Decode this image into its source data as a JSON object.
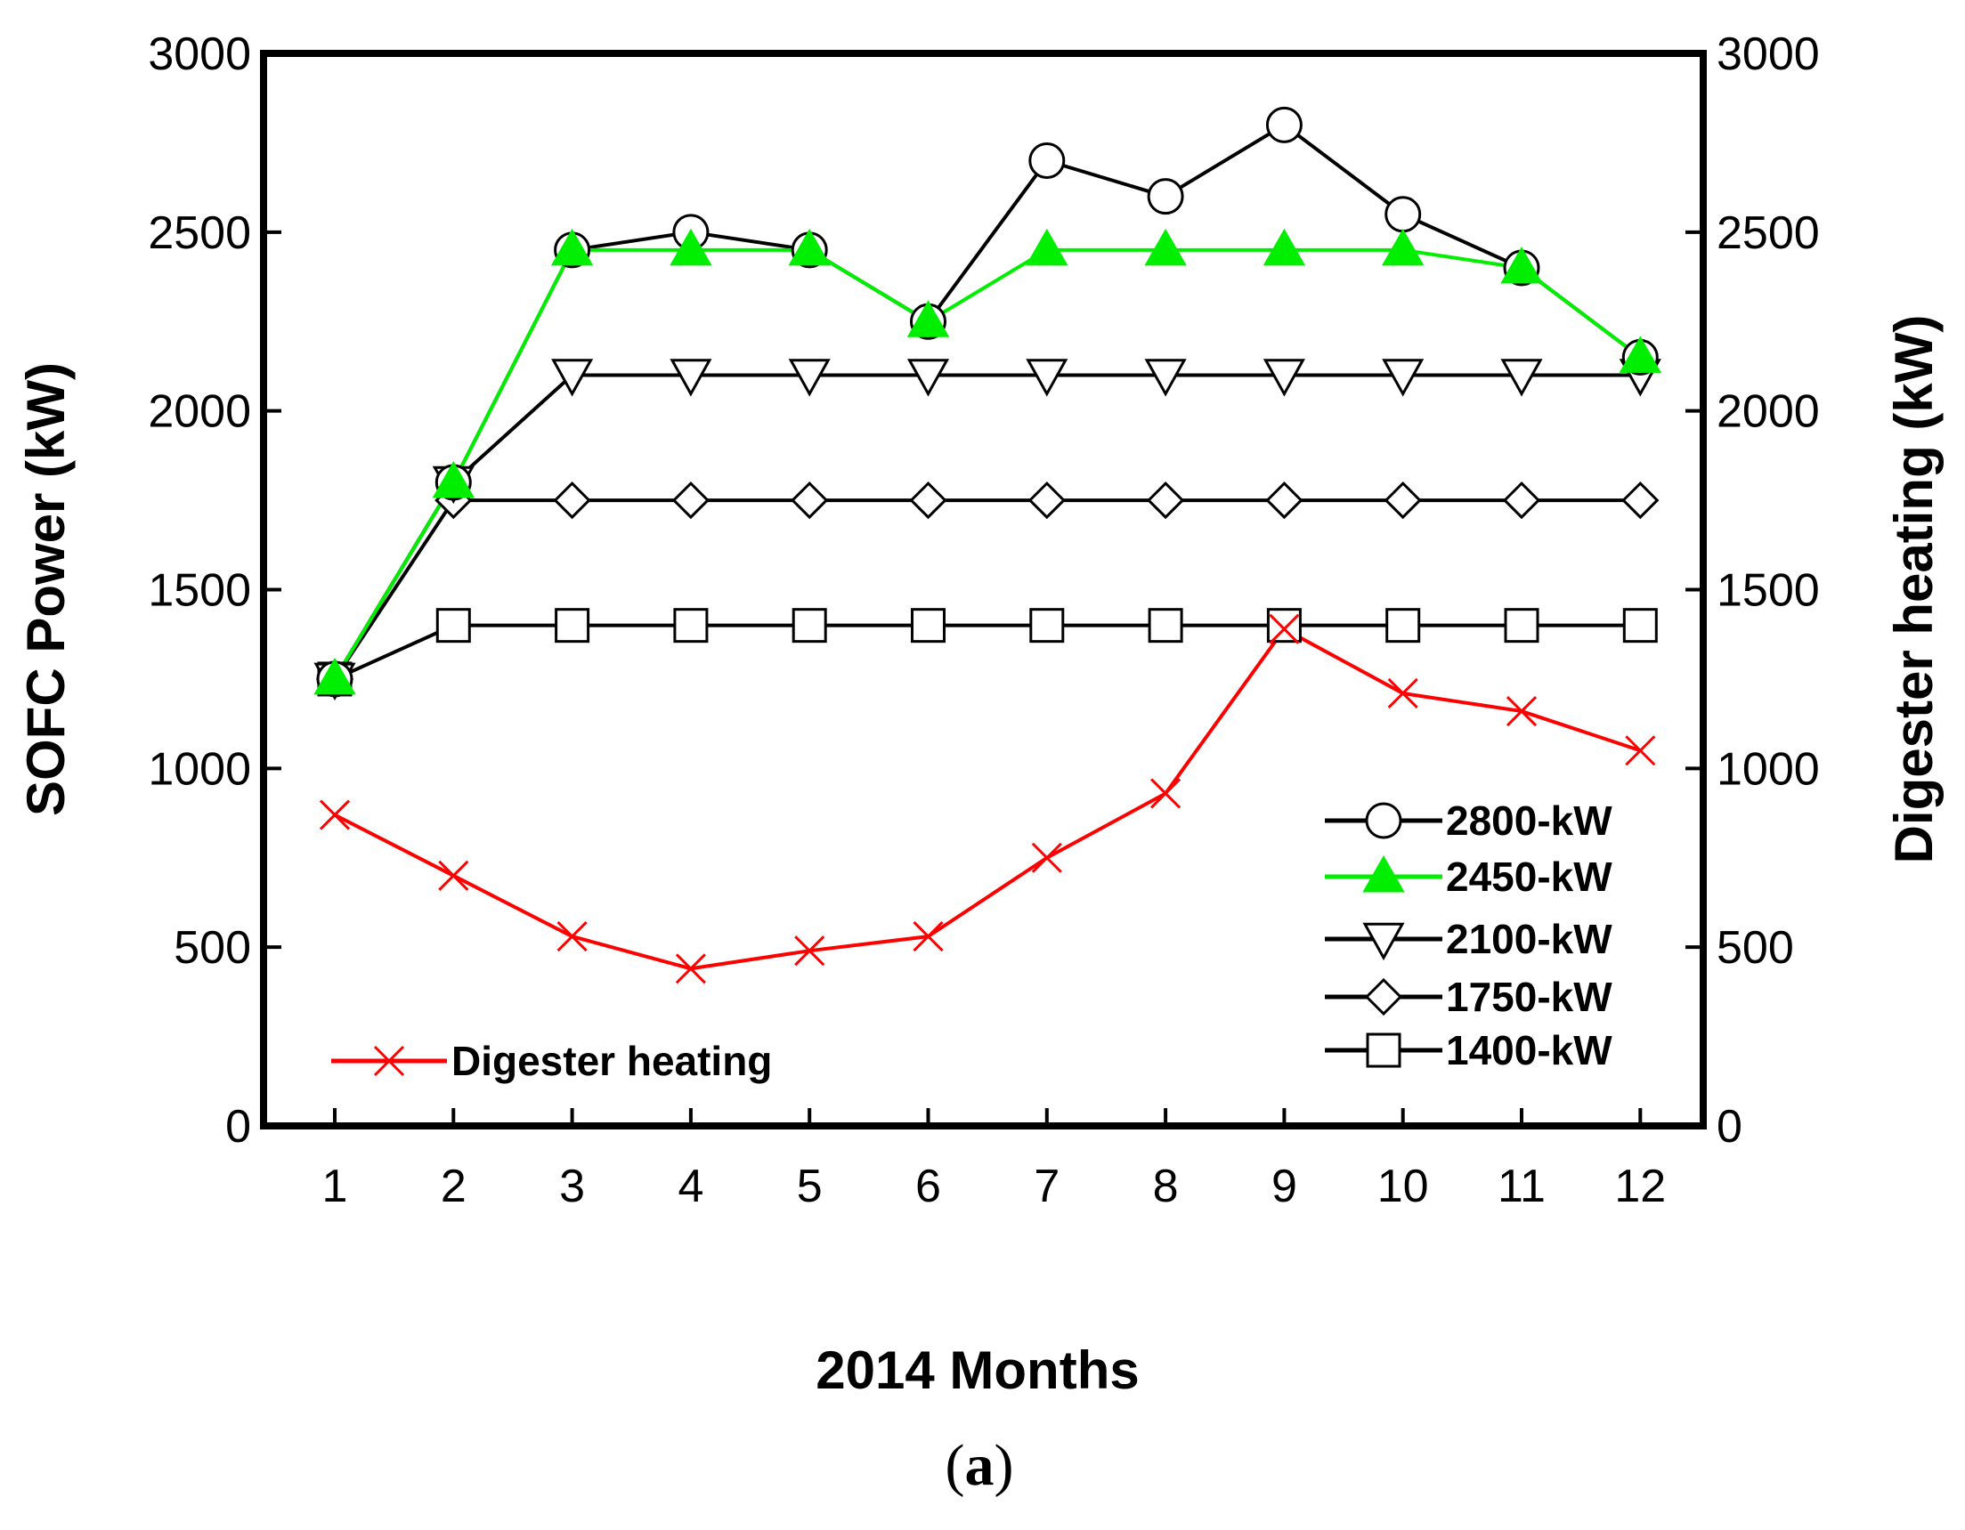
{
  "chart_data": {
    "type": "line",
    "xlabel": "2014 Months",
    "ylabel": "SOFC Power (kW)",
    "y2label": "Digester heating (kW)",
    "x": [
      1,
      2,
      3,
      4,
      5,
      6,
      7,
      8,
      9,
      10,
      11,
      12
    ],
    "xticks": [
      "1",
      "2",
      "3",
      "4",
      "5",
      "6",
      "7",
      "8",
      "9",
      "10",
      "11",
      "12"
    ],
    "ylim": [
      0,
      3000
    ],
    "y2lim": [
      0,
      3000
    ],
    "yticks": [
      "0",
      "500",
      "1000",
      "1500",
      "2000",
      "2500",
      "3000"
    ],
    "y2ticks": [
      "0",
      "500",
      "1000",
      "1500",
      "2000",
      "2500",
      "3000"
    ],
    "series": [
      {
        "name": "2800-kW",
        "axis": "left",
        "color": "#000000",
        "marker": "circle",
        "values": [
          1250,
          1800,
          2450,
          2500,
          2450,
          2250,
          2700,
          2600,
          2800,
          2550,
          2400,
          2150
        ]
      },
      {
        "name": "2450-kW",
        "axis": "left",
        "color": "#00ee00",
        "marker": "triangle-up",
        "values": [
          1250,
          1800,
          2450,
          2450,
          2450,
          2250,
          2450,
          2450,
          2450,
          2450,
          2400,
          2150
        ]
      },
      {
        "name": "2100-kW",
        "axis": "left",
        "color": "#000000",
        "marker": "triangle-down",
        "values": [
          1250,
          1800,
          2100,
          2100,
          2100,
          2100,
          2100,
          2100,
          2100,
          2100,
          2100,
          2100
        ]
      },
      {
        "name": "1750-kW",
        "axis": "left",
        "color": "#000000",
        "marker": "diamond",
        "values": [
          1250,
          1750,
          1750,
          1750,
          1750,
          1750,
          1750,
          1750,
          1750,
          1750,
          1750,
          1750
        ]
      },
      {
        "name": "1400-kW",
        "axis": "left",
        "color": "#000000",
        "marker": "square",
        "values": [
          1250,
          1400,
          1400,
          1400,
          1400,
          1400,
          1400,
          1400,
          1400,
          1400,
          1400,
          1400
        ]
      },
      {
        "name": "Digester heating",
        "axis": "right",
        "color": "#ff0000",
        "marker": "x",
        "values": [
          870,
          700,
          530,
          440,
          490,
          530,
          750,
          930,
          1390,
          1210,
          1160,
          1050
        ]
      }
    ],
    "legend_main_position": "lower-right",
    "legend_secondary_position": "lower-left"
  },
  "caption": {
    "open": "(",
    "letter": "a",
    "close": ")"
  }
}
